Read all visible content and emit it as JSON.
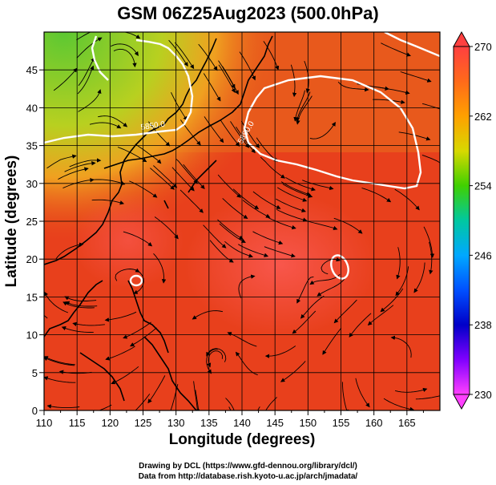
{
  "title": "GSM 06Z25Aug2023 (500.0hPa)",
  "axes": {
    "xlabel": "Longitude (degrees)",
    "ylabel": "Latitude  (degrees)",
    "xlim": [
      110,
      170
    ],
    "ylim": [
      0,
      50
    ],
    "xticks": [
      "110",
      "115",
      "120",
      "125",
      "130",
      "135",
      "140",
      "145",
      "150",
      "155",
      "160",
      "165"
    ],
    "yticks": [
      "0",
      "5",
      "10",
      "15",
      "20",
      "25",
      "30",
      "35",
      "40",
      "45"
    ]
  },
  "colorbar": {
    "range": [
      230,
      270
    ],
    "ticks": [
      "270",
      "262",
      "254",
      "246",
      "238",
      "230"
    ]
  },
  "contour_labels": [
    "5850.0",
    "5850.0"
  ],
  "credits": {
    "line1": "Drawing by DCL (https://www.gfd-dennou.org/library/dcl/)",
    "line2": "Data from http://database.rish.kyoto-u.ac.jp/arch/jmadata/"
  },
  "colors": {
    "background_field": "#e8401c",
    "cold_field": "#7ec828",
    "contour": "#ffffff",
    "coast": "#000000"
  }
}
